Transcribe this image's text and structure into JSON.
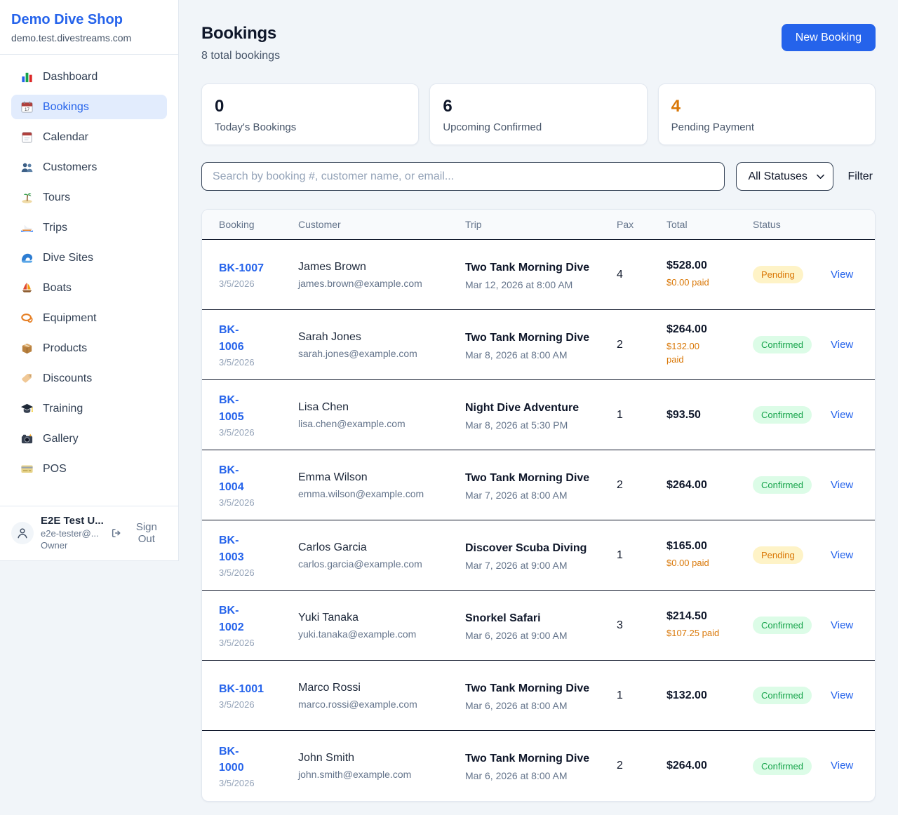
{
  "sidebar": {
    "brand": {
      "name": "Demo Dive Shop",
      "domain": "demo.test.divestreams.com"
    },
    "items": [
      {
        "label": "Dashboard",
        "icon": "bar-chart-icon",
        "active": false
      },
      {
        "label": "Bookings",
        "icon": "calendar-date-icon",
        "active": true
      },
      {
        "label": "Calendar",
        "icon": "tear-off-calendar-icon",
        "active": false
      },
      {
        "label": "Customers",
        "icon": "people-icon",
        "active": false
      },
      {
        "label": "Tours",
        "icon": "island-icon",
        "active": false
      },
      {
        "label": "Trips",
        "icon": "speedboat-icon",
        "active": false
      },
      {
        "label": "Dive Sites",
        "icon": "wave-icon",
        "active": false
      },
      {
        "label": "Boats",
        "icon": "sailboat-icon",
        "active": false
      },
      {
        "label": "Equipment",
        "icon": "diving-mask-icon",
        "active": false
      },
      {
        "label": "Products",
        "icon": "package-icon",
        "active": false
      },
      {
        "label": "Discounts",
        "icon": "tag-icon",
        "active": false
      },
      {
        "label": "Training",
        "icon": "graduation-cap-icon",
        "active": false
      },
      {
        "label": "Gallery",
        "icon": "camera-icon",
        "active": false
      },
      {
        "label": "POS",
        "icon": "credit-card-icon",
        "active": false
      }
    ],
    "user": {
      "name": "E2E Test U...",
      "email": "e2e-tester@...",
      "role": "Owner",
      "sign_out_label": "Sign Out"
    }
  },
  "header": {
    "title": "Bookings",
    "subtitle": "8 total bookings",
    "new_booking_label": "New Booking"
  },
  "stats": [
    {
      "key": "todays-bookings",
      "value": "0",
      "label": "Today's Bookings",
      "color": "#0f172a"
    },
    {
      "key": "upcoming-confirmed",
      "value": "6",
      "label": "Upcoming Confirmed",
      "color": "#0f172a"
    },
    {
      "key": "pending-payment",
      "value": "4",
      "label": "Pending Payment",
      "color": "#d97706"
    }
  ],
  "filters": {
    "search_placeholder": "Search by booking #, customer name, or email...",
    "status_selected": "All Statuses",
    "filter_label": "Filter"
  },
  "table": {
    "columns": [
      "Booking",
      "Customer",
      "Trip",
      "Pax",
      "Total",
      "Status"
    ],
    "view_label": "View",
    "rows": [
      {
        "booking_id": "BK-1007",
        "booking_id_display": "BK-1007",
        "booking_date": "3/5/2026",
        "customer_name": "James Brown",
        "customer_email": "james.brown@example.com",
        "trip_name": "Two Tank Morning Dive",
        "trip_datetime": "Mar 12, 2026 at 8:00 AM",
        "pax": "4",
        "total": "$528.00",
        "paid": "$0.00 paid",
        "status": "Pending"
      },
      {
        "booking_id": "BK-1006",
        "booking_id_display": "BK-\n1006",
        "booking_date": "3/5/2026",
        "customer_name": "Sarah Jones",
        "customer_email": "sarah.jones@example.com",
        "trip_name": "Two Tank Morning Dive",
        "trip_datetime": "Mar 8, 2026 at 8:00 AM",
        "pax": "2",
        "total": "$264.00",
        "paid": "$132.00\npaid",
        "status": "Confirmed"
      },
      {
        "booking_id": "BK-1005",
        "booking_id_display": "BK-\n1005",
        "booking_date": "3/5/2026",
        "customer_name": "Lisa Chen",
        "customer_email": "lisa.chen@example.com",
        "trip_name": "Night Dive Adventure",
        "trip_datetime": "Mar 8, 2026 at 5:30 PM",
        "pax": "1",
        "total": "$93.50",
        "paid": null,
        "status": "Confirmed"
      },
      {
        "booking_id": "BK-1004",
        "booking_id_display": "BK-\n1004",
        "booking_date": "3/5/2026",
        "customer_name": "Emma Wilson",
        "customer_email": "emma.wilson@example.com",
        "trip_name": "Two Tank Morning Dive",
        "trip_datetime": "Mar 7, 2026 at 8:00 AM",
        "pax": "2",
        "total": "$264.00",
        "paid": null,
        "status": "Confirmed"
      },
      {
        "booking_id": "BK-1003",
        "booking_id_display": "BK-\n1003",
        "booking_date": "3/5/2026",
        "customer_name": "Carlos Garcia",
        "customer_email": "carlos.garcia@example.com",
        "trip_name": "Discover Scuba Diving",
        "trip_datetime": "Mar 7, 2026 at 9:00 AM",
        "pax": "1",
        "total": "$165.00",
        "paid": "$0.00 paid",
        "status": "Pending"
      },
      {
        "booking_id": "BK-1002",
        "booking_id_display": "BK-\n1002",
        "booking_date": "3/5/2026",
        "customer_name": "Yuki Tanaka",
        "customer_email": "yuki.tanaka@example.com",
        "trip_name": "Snorkel Safari",
        "trip_datetime": "Mar 6, 2026 at 9:00 AM",
        "pax": "3",
        "total": "$214.50",
        "paid": "$107.25 paid",
        "status": "Confirmed"
      },
      {
        "booking_id": "BK-1001",
        "booking_id_display": "BK-1001",
        "booking_date": "3/5/2026",
        "customer_name": "Marco Rossi",
        "customer_email": "marco.rossi@example.com",
        "trip_name": "Two Tank Morning Dive",
        "trip_datetime": "Mar 6, 2026 at 8:00 AM",
        "pax": "1",
        "total": "$132.00",
        "paid": null,
        "status": "Confirmed"
      },
      {
        "booking_id": "BK-1000",
        "booking_id_display": "BK-\n1000",
        "booking_date": "3/5/2026",
        "customer_name": "John Smith",
        "customer_email": "john.smith@example.com",
        "trip_name": "Two Tank Morning Dive",
        "trip_datetime": "Mar 6, 2026 at 8:00 AM",
        "pax": "2",
        "total": "$264.00",
        "paid": null,
        "status": "Confirmed"
      }
    ]
  },
  "colors": {
    "accent": "#2563eb",
    "pending_text": "#d97706",
    "pending_bg": "#fef3c7",
    "confirmed_text": "#16a34a",
    "confirmed_bg": "#dcfce7",
    "paid_amount": "#d97706"
  }
}
